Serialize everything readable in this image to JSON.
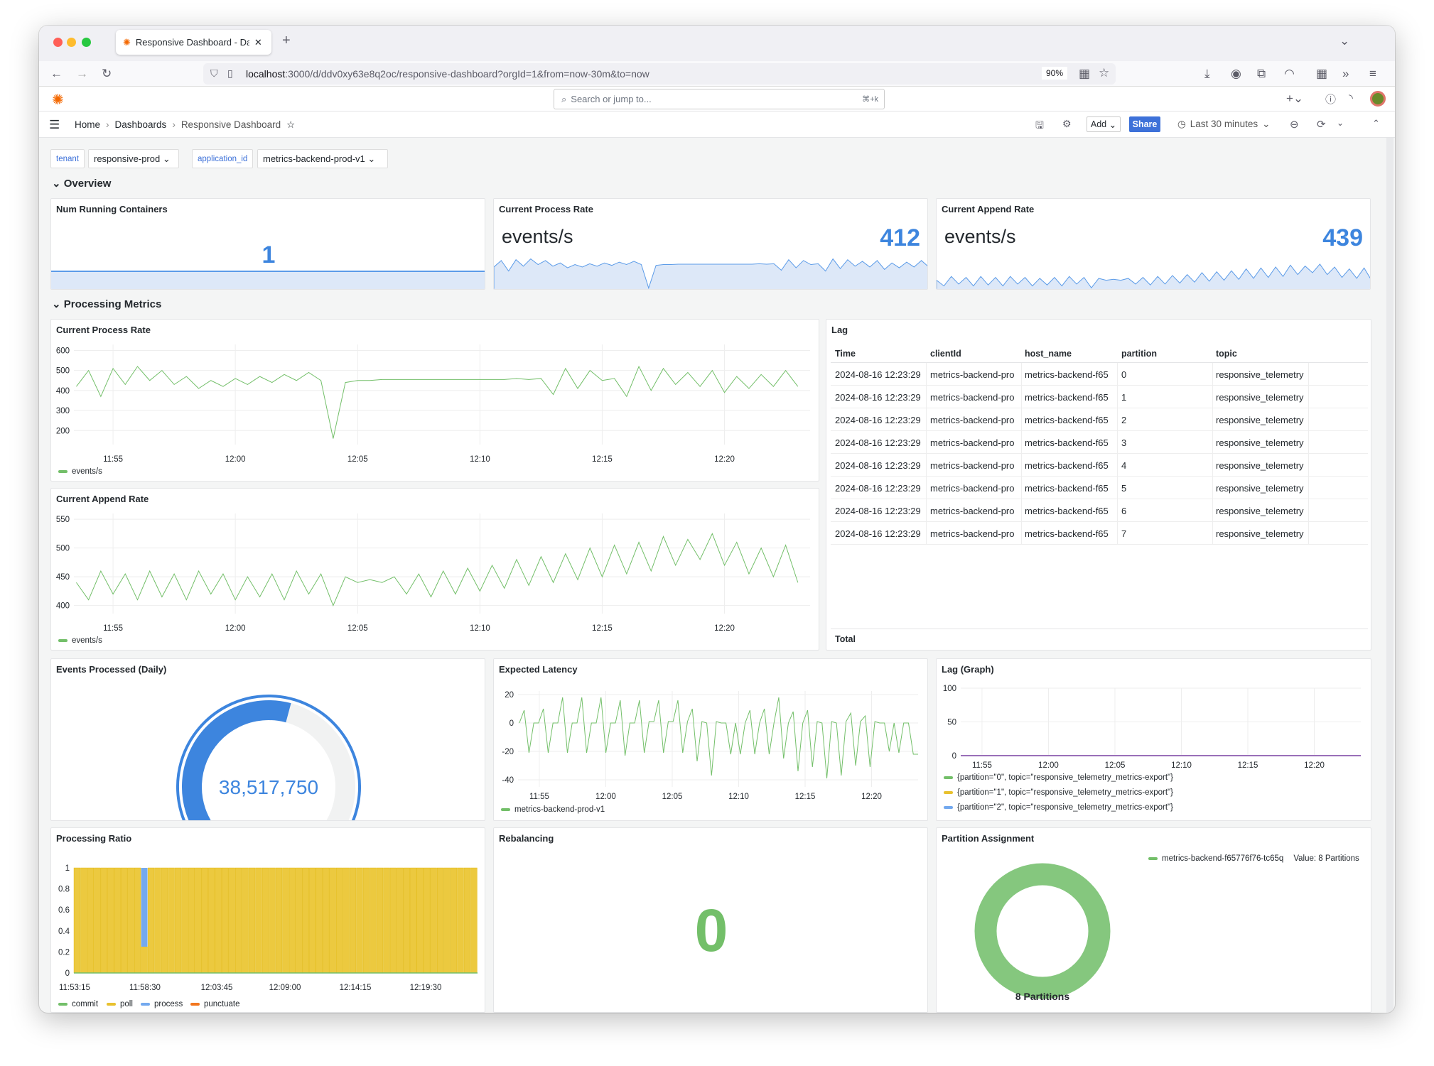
{
  "browser": {
    "tab_title": "Responsive Dashboard - Dashboards",
    "url_host": "localhost",
    "url_rest": ":3000/d/ddv0xy63e8q2oc/responsive-dashboard?orgId=1&from=now-30m&to=now",
    "zoom": "90%"
  },
  "grafana": {
    "search_placeholder": "Search or jump to...",
    "search_shortcut": "⌘+k",
    "breadcrumb": [
      "Home",
      "Dashboards",
      "Responsive Dashboard"
    ],
    "add_label": "Add",
    "share_label": "Share",
    "time_range": "Last 30 minutes"
  },
  "variables": [
    {
      "label": "tenant",
      "value": "responsive-prod"
    },
    {
      "label": "application_id",
      "value": "metrics-backend-prod-v1"
    }
  ],
  "rows": {
    "overview": "Overview",
    "processing": "Processing Metrics"
  },
  "colors": {
    "blue": "#3d85de",
    "green": "#73bf69",
    "yellow": "#e8c12e",
    "process": "#73a9ef",
    "orange": "#f2761e",
    "purple": "#9a6fb8",
    "share": "#3d71d9"
  },
  "time_axis": {
    "range": [
      "11:53:24",
      "12:23:30"
    ],
    "first_sample": "11:53:30",
    "sample_interval_s": 30,
    "ticks": [
      "11:55",
      "12:00",
      "12:05",
      "12:10",
      "12:15",
      "12:20"
    ]
  },
  "panels": {
    "num_containers": {
      "title": "Num Running Containers",
      "value": "1"
    },
    "process_stat": {
      "title": "Current Process Rate",
      "unit": "events/s",
      "value": "412"
    },
    "append_stat": {
      "title": "Current Append Rate",
      "unit": "events/s",
      "value": "439"
    },
    "process_rate": {
      "title": "Current Process Rate",
      "legend": "events/s",
      "yticks": [
        "600",
        "500",
        "400",
        "300",
        "200"
      ],
      "ylim": [
        130,
        630
      ],
      "values": [
        420,
        500,
        370,
        510,
        430,
        520,
        450,
        500,
        430,
        470,
        410,
        450,
        420,
        460,
        430,
        470,
        440,
        480,
        450,
        490,
        450,
        160,
        440,
        450,
        450,
        455,
        455,
        455,
        455,
        455,
        455,
        455,
        455,
        455,
        455,
        455,
        460,
        455,
        460,
        380,
        510,
        410,
        500,
        450,
        460,
        370,
        520,
        400,
        510,
        430,
        490,
        420,
        500,
        390,
        470,
        410,
        480,
        420,
        500,
        420
      ]
    },
    "append_rate": {
      "title": "Current Append Rate",
      "legend": "events/s",
      "yticks": [
        "550",
        "500",
        "450",
        "400"
      ],
      "ylim": [
        386,
        560
      ],
      "values": [
        440,
        410,
        460,
        420,
        455,
        410,
        460,
        415,
        455,
        410,
        460,
        420,
        455,
        410,
        450,
        415,
        455,
        410,
        460,
        420,
        455,
        400,
        450,
        440,
        445,
        440,
        450,
        420,
        455,
        415,
        460,
        420,
        465,
        425,
        470,
        430,
        480,
        435,
        485,
        440,
        490,
        445,
        500,
        450,
        505,
        455,
        510,
        460,
        520,
        470,
        515,
        480,
        525,
        470,
        510,
        455,
        500,
        450,
        505,
        440
      ]
    },
    "lag_table": {
      "title": "Lag",
      "columns": [
        "Time",
        "clientId",
        "host_name",
        "partition",
        "topic"
      ],
      "rows": [
        [
          "2024-08-16 12:23:29",
          "metrics-backend-pro",
          "metrics-backend-f65",
          "0",
          "responsive_telemetry"
        ],
        [
          "2024-08-16 12:23:29",
          "metrics-backend-pro",
          "metrics-backend-f65",
          "1",
          "responsive_telemetry"
        ],
        [
          "2024-08-16 12:23:29",
          "metrics-backend-pro",
          "metrics-backend-f65",
          "2",
          "responsive_telemetry"
        ],
        [
          "2024-08-16 12:23:29",
          "metrics-backend-pro",
          "metrics-backend-f65",
          "3",
          "responsive_telemetry"
        ],
        [
          "2024-08-16 12:23:29",
          "metrics-backend-pro",
          "metrics-backend-f65",
          "4",
          "responsive_telemetry"
        ],
        [
          "2024-08-16 12:23:29",
          "metrics-backend-pro",
          "metrics-backend-f65",
          "5",
          "responsive_telemetry"
        ],
        [
          "2024-08-16 12:23:29",
          "metrics-backend-pro",
          "metrics-backend-f65",
          "6",
          "responsive_telemetry"
        ],
        [
          "2024-08-16 12:23:29",
          "metrics-backend-pro",
          "metrics-backend-f65",
          "7",
          "responsive_telemetry"
        ]
      ],
      "footer": "Total"
    },
    "events_daily": {
      "title": "Events Processed (Daily)",
      "value": "38,517,750",
      "fill_fraction": 0.55
    },
    "latency": {
      "title": "Expected Latency",
      "legend": "metrics-backend-prod-v1",
      "yticks": [
        "20",
        "0",
        "-20",
        "-40"
      ],
      "ylim": [
        -45,
        22.5
      ],
      "values": [
        0,
        9,
        -21,
        0,
        0,
        10,
        -21,
        0,
        0,
        18,
        -21,
        0,
        0,
        18,
        -21,
        0,
        0,
        18,
        -21,
        0,
        0,
        16,
        -23,
        0,
        0,
        16,
        -21,
        1,
        1,
        16,
        -21,
        1,
        1,
        16,
        -21,
        1,
        10,
        -27,
        1,
        0,
        -37,
        1,
        0,
        0,
        -22,
        0,
        -22,
        0,
        9,
        -22,
        0,
        10,
        -22,
        0,
        18,
        -25,
        0,
        8,
        -34,
        0,
        9,
        -31,
        1,
        0,
        -39,
        1,
        0,
        -37,
        1,
        7,
        -30,
        1,
        5,
        -31,
        1,
        0,
        0,
        -20,
        0,
        -21,
        0,
        0,
        -22,
        -22
      ]
    },
    "lag_graph": {
      "title": "Lag (Graph)",
      "yticks": [
        "100",
        "50",
        "0"
      ],
      "ylim": [
        0,
        100
      ],
      "value": 0,
      "legend": [
        {
          "label": "{partition=\"0\", topic=\"responsive_telemetry_metrics-export\"}",
          "color": "#73bf69"
        },
        {
          "label": "{partition=\"1\", topic=\"responsive_telemetry_metrics-export\"}",
          "color": "#e8c12e"
        },
        {
          "label": "{partition=\"2\", topic=\"responsive_telemetry_metrics-export\"}",
          "color": "#73a9ef"
        }
      ]
    },
    "processing_ratio": {
      "title": "Processing Ratio",
      "yticks": [
        "1",
        "0.8",
        "0.6",
        "0.4",
        "0.2",
        "0"
      ],
      "xticks": [
        "11:53:15",
        "11:58:30",
        "12:03:45",
        "12:09:00",
        "12:14:15",
        "12:19:30"
      ],
      "legend": [
        {
          "label": "commit",
          "color": "#73bf69"
        },
        {
          "label": "poll",
          "color": "#e8c12e"
        },
        {
          "label": "process",
          "color": "#73a9ef"
        },
        {
          "label": "punctuate",
          "color": "#f2761e"
        }
      ],
      "poll": [
        1,
        1,
        1,
        1,
        1,
        1,
        1,
        1,
        1,
        1,
        0.25,
        1,
        1,
        1,
        1,
        1,
        1,
        1,
        1,
        1,
        1,
        1,
        1,
        1,
        1,
        1,
        1,
        1,
        1,
        1,
        1,
        1,
        1,
        1,
        1,
        1,
        1,
        1,
        1,
        1,
        1,
        1,
        1,
        1,
        1,
        1,
        1,
        1,
        1,
        1,
        1,
        1,
        1,
        1,
        1,
        1,
        1,
        1,
        1,
        1
      ],
      "process": [
        0,
        0,
        0,
        0,
        0,
        0,
        0,
        0,
        0,
        0,
        0.75,
        0,
        0,
        0,
        0,
        0,
        0,
        0,
        0,
        0,
        0,
        0,
        0,
        0,
        0,
        0,
        0,
        0,
        0,
        0,
        0,
        0,
        0,
        0,
        0,
        0,
        0,
        0,
        0,
        0,
        0,
        0,
        0,
        0,
        0,
        0,
        0,
        0,
        0,
        0,
        0,
        0,
        0,
        0,
        0,
        0,
        0,
        0,
        0,
        0
      ]
    },
    "rebalancing": {
      "title": "Rebalancing",
      "value": "0"
    },
    "partition": {
      "title": "Partition Assignment",
      "legend": "metrics-backend-f65776f76-tc65q",
      "legend_value": "Value: 8 Partitions",
      "value": 8,
      "label": "8 Partitions"
    }
  }
}
